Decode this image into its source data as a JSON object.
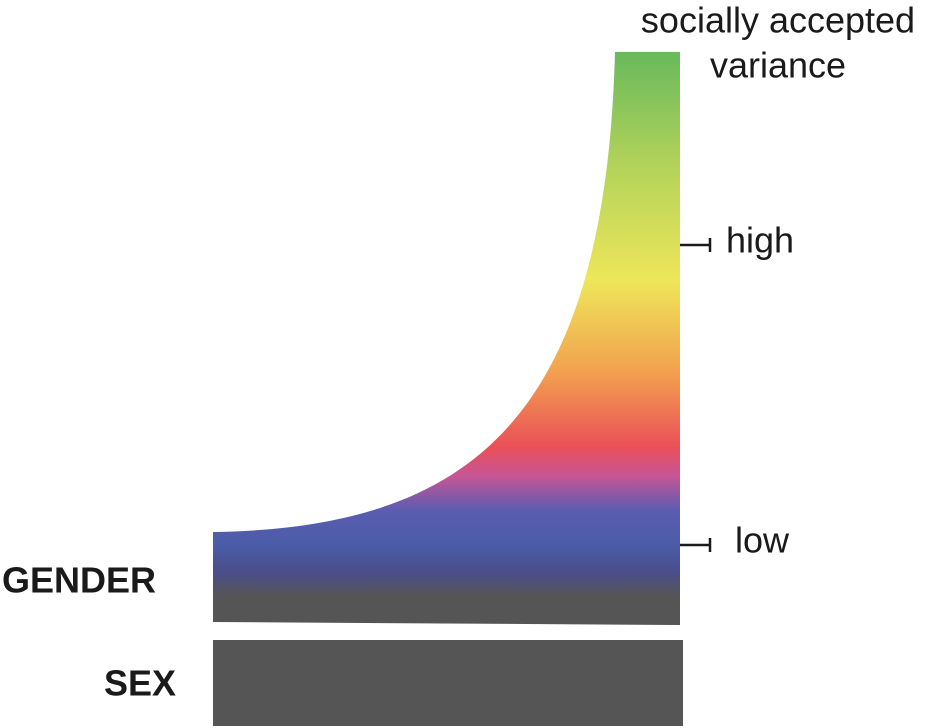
{
  "scale_title": [
    "socially accepted",
    "variance"
  ],
  "ticks": [
    "high",
    "low"
  ],
  "bars": [
    "GENDER",
    "SEX"
  ]
}
